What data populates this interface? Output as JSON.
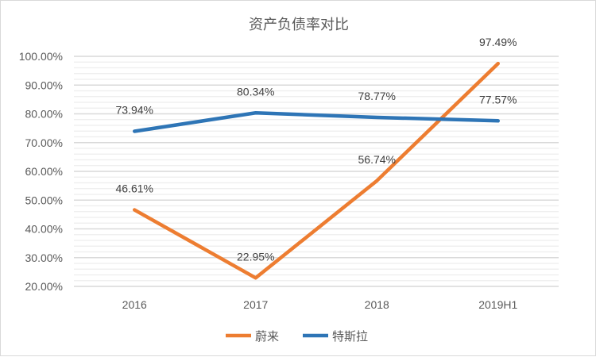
{
  "chart_data": {
    "type": "line",
    "title": "资产负债率对比",
    "xlabel": "",
    "ylabel": "",
    "categories": [
      "2016",
      "2017",
      "2018",
      "2019H1"
    ],
    "ylim": [
      20,
      100
    ],
    "y_major_step": 10,
    "y_minor_step": 2,
    "y_tick_labels": [
      "20.00%",
      "30.00%",
      "40.00%",
      "50.00%",
      "60.00%",
      "70.00%",
      "80.00%",
      "90.00%",
      "100.00%"
    ],
    "grid": true,
    "legend_position": "bottom",
    "series": [
      {
        "name": "蔚来",
        "color": "#ED7D31",
        "values": [
          46.61,
          22.95,
          56.74,
          97.49
        ],
        "labels": [
          "46.61%",
          "22.95%",
          "56.74%",
          "97.49%"
        ]
      },
      {
        "name": "特斯拉",
        "color": "#2E75B6",
        "values": [
          73.94,
          80.34,
          78.77,
          77.57
        ],
        "labels": [
          "73.94%",
          "80.34%",
          "78.77%",
          "77.57%"
        ]
      }
    ]
  }
}
